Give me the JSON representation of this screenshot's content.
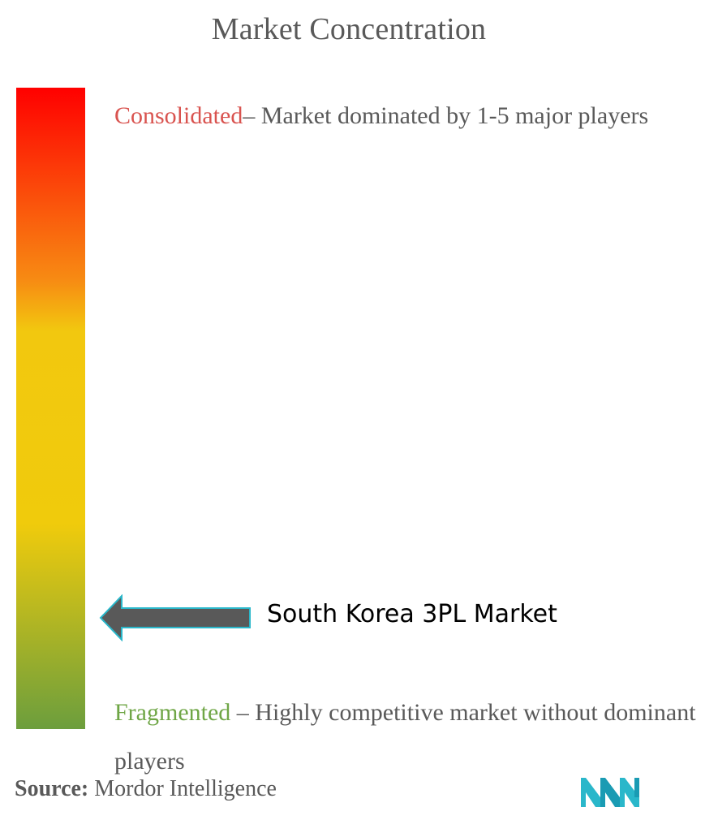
{
  "chart_data": {
    "type": "other",
    "title": "Market Concentration",
    "scale": {
      "top_label": "Consolidated",
      "top_description": "– Market dominated by 1-5 major players",
      "bottom_label": "Fragmented",
      "bottom_description": "– Highly competitive market without dominant players",
      "gradient_colors": [
        "#ff0000",
        "#f78b13",
        "#f2c80f",
        "#f0cb0c",
        "#6c9e3d"
      ]
    },
    "marker": {
      "label": "South Korea 3PL Market",
      "position_fraction_from_top": 0.82
    }
  },
  "source": {
    "label": "Source:",
    "text": "Mordor Intelligence"
  },
  "logo": {
    "icon": "mordor-intelligence-logo-icon",
    "color": "#2ab7ca"
  }
}
